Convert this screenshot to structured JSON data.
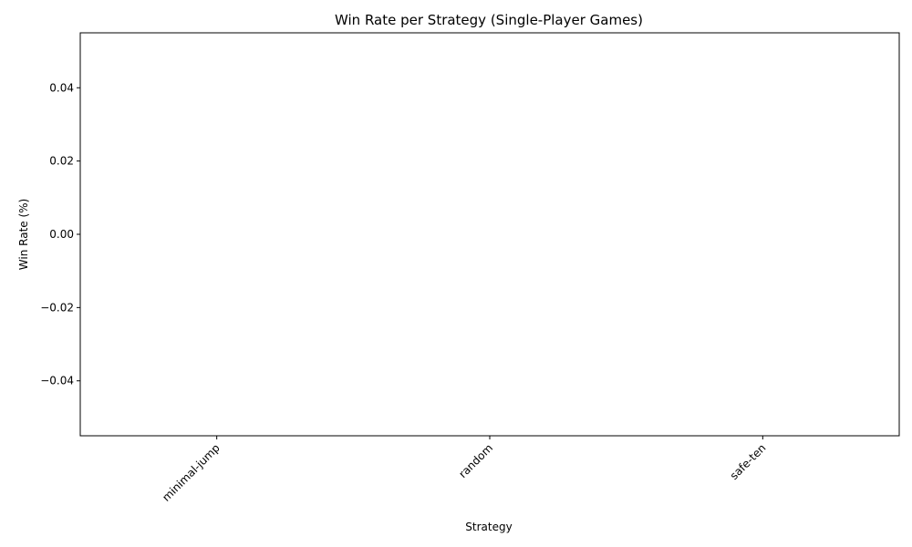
{
  "chart_data": {
    "type": "bar",
    "title": "Win Rate per Strategy (Single-Player Games)",
    "xlabel": "Strategy",
    "ylabel": "Win Rate (%)",
    "categories": [
      "minimal-jump",
      "random",
      "safe-ten"
    ],
    "values": [
      0,
      0,
      0
    ],
    "ylim": [
      -0.055,
      0.055
    ],
    "yticks": [
      0.04,
      0.02,
      0.0,
      -0.02,
      -0.04
    ],
    "ytick_labels": [
      "0.04",
      "0.02",
      "0.00",
      "−0.02",
      "−0.04"
    ],
    "xtick_rotation": 45,
    "grid": false,
    "colors": {
      "axis": "#000000",
      "background": "#ffffff",
      "bar": "#1f77b4"
    }
  }
}
